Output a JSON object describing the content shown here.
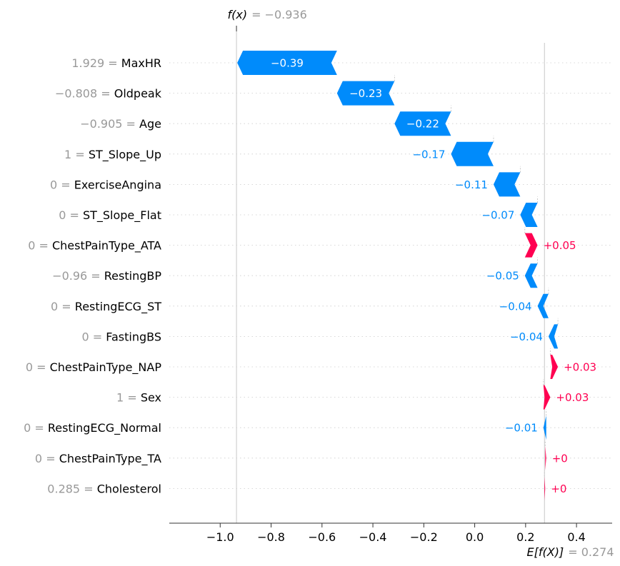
{
  "chart_data": {
    "type": "waterfall",
    "fx_label": "f(x)",
    "fx_value_text": "= −0.936",
    "fx": -0.936,
    "efx_label": "E[f(X)]",
    "efx_value_text": "= 0.274",
    "efx": 0.274,
    "xlim": [
      -1.2,
      0.54
    ],
    "xticks": [
      {
        "value": -1.0,
        "label": "−1.0"
      },
      {
        "value": -0.8,
        "label": "−0.8"
      },
      {
        "value": -0.6,
        "label": "−0.6"
      },
      {
        "value": -0.4,
        "label": "−0.4"
      },
      {
        "value": -0.2,
        "label": "−0.2"
      },
      {
        "value": 0.0,
        "label": "0.0"
      },
      {
        "value": 0.2,
        "label": "0.2"
      },
      {
        "value": 0.4,
        "label": "0.4"
      }
    ],
    "features": [
      {
        "value_text": "1.929 =",
        "name": "MaxHR",
        "shap": -0.392,
        "label": "−0.39"
      },
      {
        "value_text": "−0.808 =",
        "name": "Oldpeak",
        "shap": -0.226,
        "label": "−0.23"
      },
      {
        "value_text": "−0.905 =",
        "name": "Age",
        "shap": -0.222,
        "label": "−0.22"
      },
      {
        "value_text": "1 =",
        "name": "ST_Slope_Up",
        "shap": -0.167,
        "label": "−0.17"
      },
      {
        "value_text": "0 =",
        "name": "ExerciseAngina",
        "shap": -0.105,
        "label": "−0.11"
      },
      {
        "value_text": "0 =",
        "name": "ST_Slope_Flat",
        "shap": -0.068,
        "label": "−0.07"
      },
      {
        "value_text": "0 =",
        "name": "ChestPainType_ATA",
        "shap": 0.05,
        "label": "+0.05"
      },
      {
        "value_text": "−0.96 =",
        "name": "RestingBP",
        "shap": -0.05,
        "label": "−0.05"
      },
      {
        "value_text": "0 =",
        "name": "RestingECG_ST",
        "shap": -0.043,
        "label": "−0.04"
      },
      {
        "value_text": "0 =",
        "name": "FastingBS",
        "shap": -0.037,
        "label": "−0.04"
      },
      {
        "value_text": "0 =",
        "name": "ChestPainType_NAP",
        "shap": 0.03,
        "label": "+0.03"
      },
      {
        "value_text": "1 =",
        "name": "Sex",
        "shap": 0.027,
        "label": "+0.03"
      },
      {
        "value_text": "0 =",
        "name": "RestingECG_Normal",
        "shap": -0.011,
        "label": "−0.01"
      },
      {
        "value_text": "0 =",
        "name": "ChestPainType_TA",
        "shap": 0.004,
        "label": "+0"
      },
      {
        "value_text": "0.285 =",
        "name": "Cholesterol",
        "shap": 0.003,
        "label": "+0"
      }
    ],
    "colors": {
      "negative": "#008bfb",
      "positive": "#ff0051",
      "muted": "#999999",
      "axis": "#333333"
    }
  }
}
